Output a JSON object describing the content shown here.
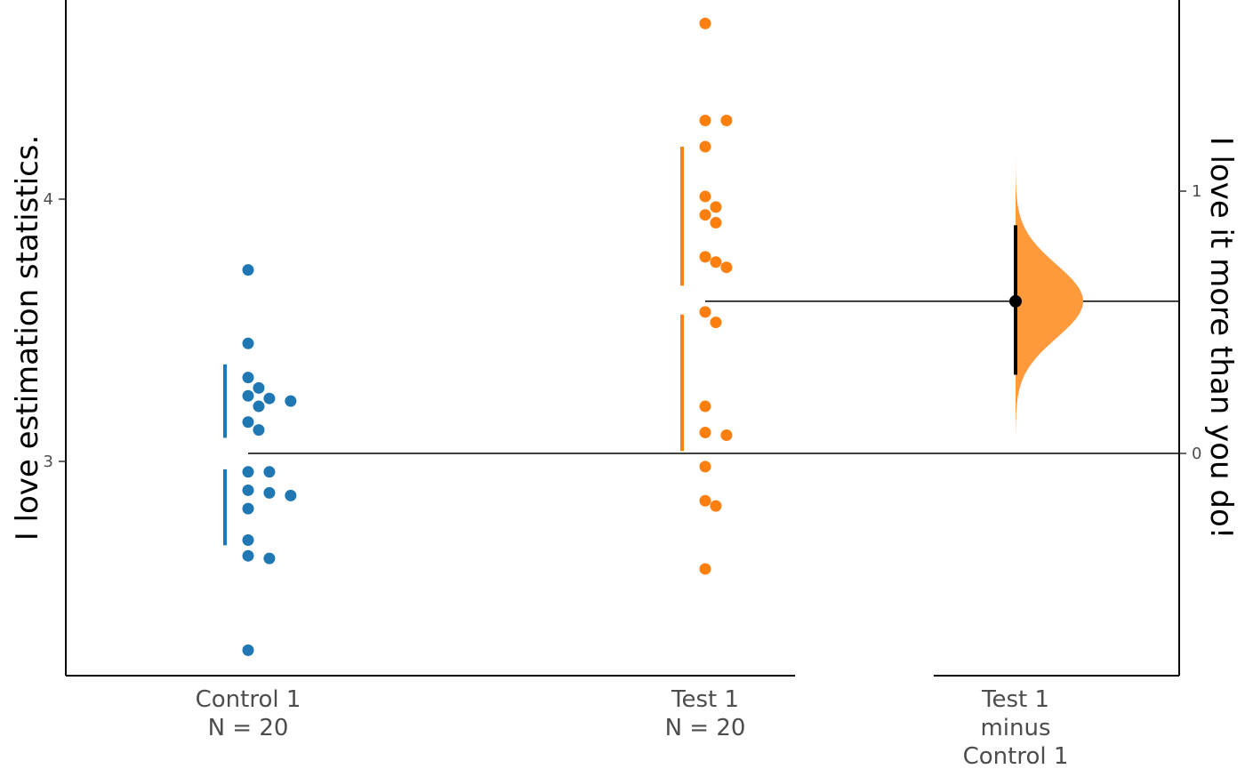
{
  "chart_data": {
    "type": "scatter",
    "subtype": "gardner-altman estimation plot",
    "ylabel_left": "I love estimation statistics.",
    "ylabel_right": "I love it more than you do!",
    "left_axis": {
      "ylim": [
        2.2,
        4.8
      ],
      "ticks": [
        3,
        4
      ]
    },
    "right_axis": {
      "ylim": [
        -0.85,
        1.72
      ],
      "ticks": [
        0,
        1
      ]
    },
    "groups": [
      {
        "name": "Control 1",
        "n_label": "N = 20",
        "color": "#1f77b4",
        "mean": 3.03,
        "sd_lower": [
          2.68,
          2.97
        ],
        "sd_upper": [
          3.09,
          3.37
        ],
        "values": [
          3.73,
          3.45,
          3.32,
          3.28,
          3.25,
          3.24,
          3.23,
          3.21,
          3.15,
          3.12,
          2.96,
          2.96,
          2.89,
          2.88,
          2.87,
          2.82,
          2.7,
          2.64,
          2.63,
          2.28
        ]
      },
      {
        "name": "Test 1",
        "n_label": "N = 20",
        "color": "#ff7f0e",
        "mean": 3.61,
        "sd_lower": [
          3.04,
          3.56
        ],
        "sd_upper": [
          3.67,
          4.2
        ],
        "values": [
          4.67,
          4.3,
          4.3,
          4.2,
          4.01,
          3.97,
          3.94,
          3.91,
          3.78,
          3.76,
          3.74,
          3.57,
          3.53,
          3.21,
          3.11,
          3.1,
          2.98,
          2.85,
          2.83,
          2.59
        ]
      }
    ],
    "difference": {
      "label_lines": [
        "Test 1",
        "minus",
        "Control 1"
      ],
      "color": "#ff9a3c",
      "mean_diff": 0.58,
      "ci": [
        0.3,
        0.87
      ],
      "bootstrap_range": [
        0.08,
        1.12
      ]
    }
  }
}
